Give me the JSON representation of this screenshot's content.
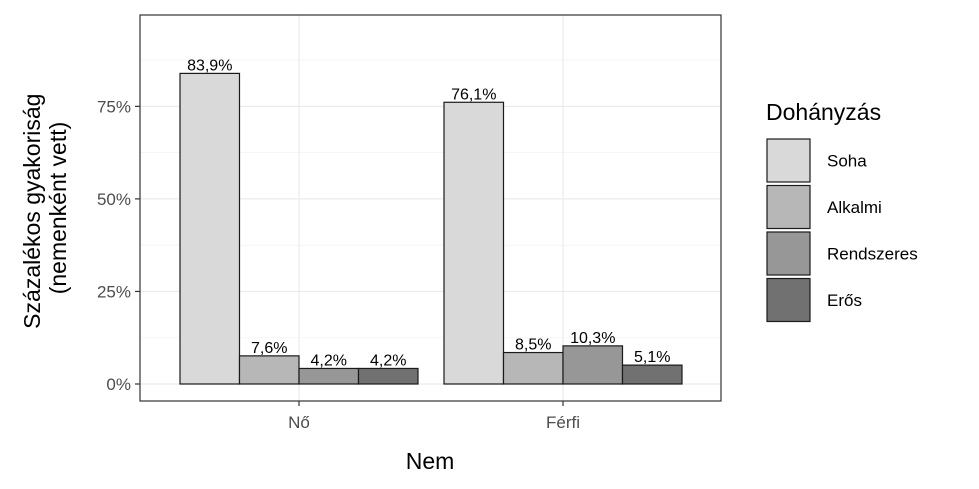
{
  "chart_data": {
    "type": "bar",
    "title": "",
    "xlabel": "Nem",
    "ylabel_lines": [
      "Százalékos gyakoriság",
      "(nemenként vett)"
    ],
    "categories": [
      "Nő",
      "Férfi"
    ],
    "series": [
      {
        "name": "Soha",
        "values": [
          83.9,
          76.1
        ],
        "labels": [
          "83,9%",
          "76,1%"
        ],
        "color": "#d9d9d9"
      },
      {
        "name": "Alkalmi",
        "values": [
          7.6,
          8.5
        ],
        "labels": [
          "7,6%",
          "8,5%"
        ],
        "color": "#b7b7b7"
      },
      {
        "name": "Rendszeres",
        "values": [
          4.2,
          10.3
        ],
        "labels": [
          "4,2%",
          "10,3%"
        ],
        "color": "#979797"
      },
      {
        "name": "Erős",
        "values": [
          4.2,
          5.1
        ],
        "labels": [
          "4,2%",
          "5,1%"
        ],
        "color": "#717171"
      }
    ],
    "yticks": [
      0,
      25,
      50,
      75
    ],
    "ytick_labels": [
      "0%",
      "25%",
      "50%",
      "75%"
    ],
    "ylim": [
      0,
      100
    ],
    "grid": true,
    "legend": {
      "title": "Dohányzás",
      "position": "right"
    }
  }
}
